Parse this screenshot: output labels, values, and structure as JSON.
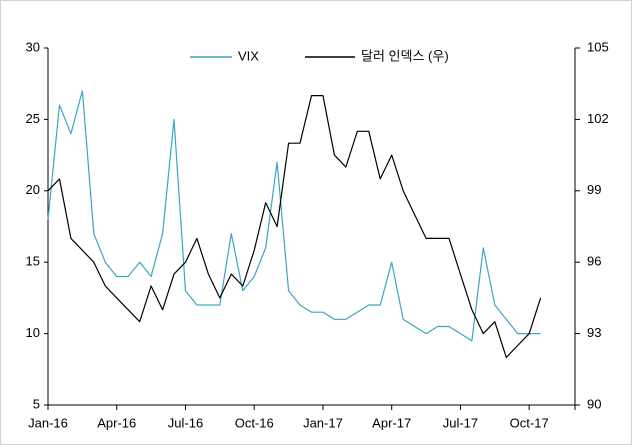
{
  "chart_data": {
    "type": "line",
    "categories": [
      "Jan-16",
      null,
      null,
      null,
      null,
      null,
      "Apr-16",
      null,
      null,
      null,
      null,
      null,
      "Jul-16",
      null,
      null,
      null,
      null,
      null,
      "Oct-16",
      null,
      null,
      null,
      null,
      null,
      "Jan-17",
      null,
      null,
      null,
      null,
      null,
      "Apr-17",
      null,
      null,
      null,
      null,
      null,
      "Jul-17",
      null,
      null,
      null,
      null,
      null,
      "Oct-17",
      null,
      null,
      null
    ],
    "series": [
      {
        "name": "VIX",
        "color": "#3aa6c2",
        "values": [
          18,
          26,
          24,
          27,
          17,
          15,
          14,
          14,
          15,
          14,
          17,
          25,
          13,
          12,
          12,
          12,
          17,
          13,
          14,
          16,
          22,
          13,
          12,
          11.5,
          11.5,
          11,
          11,
          11.5,
          12,
          12,
          15,
          11,
          10.5,
          10,
          10.5,
          10.5,
          10,
          9.5,
          16,
          12,
          11,
          10,
          10,
          10,
          null,
          null
        ]
      },
      {
        "name": "달러 인덱스 (우)",
        "color": "#000000",
        "axis": "y2",
        "values": [
          99,
          99.5,
          97,
          96.5,
          96,
          95,
          94.5,
          94,
          93.5,
          95,
          94,
          95.5,
          96,
          97,
          95.5,
          94.5,
          95.5,
          95,
          96.5,
          98.5,
          97.5,
          101,
          101,
          103,
          103,
          100.5,
          100,
          101.5,
          101.5,
          99.5,
          100.5,
          99,
          98,
          97,
          97,
          97,
          95.5,
          94,
          93,
          93.5,
          92,
          92.5,
          93,
          94.5,
          null,
          null
        ]
      }
    ],
    "ylim": [
      5,
      30
    ],
    "yticks": [
      5,
      10,
      15,
      20,
      25,
      30
    ],
    "y2lim": [
      90,
      105
    ],
    "y2ticks": [
      90,
      93,
      96,
      99,
      102,
      105
    ],
    "legend": "top"
  }
}
